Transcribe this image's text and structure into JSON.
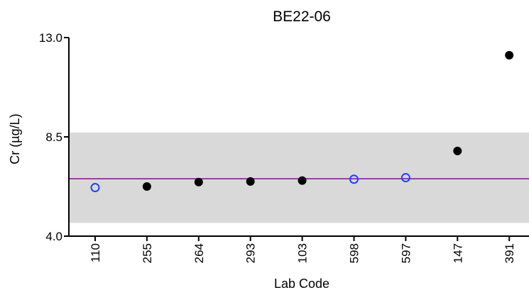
{
  "chart_data": {
    "type": "scatter",
    "title": "BE22-06",
    "xlabel": "Lab Code",
    "ylabel": "Cr (µg/L)",
    "ylim": [
      4.0,
      13.0
    ],
    "yticks": [
      "4.0",
      "8.5",
      "13.0"
    ],
    "categories": [
      "110",
      "255",
      "264",
      "293",
      "103",
      "598",
      "597",
      "147",
      "391"
    ],
    "values": [
      6.2,
      6.25,
      6.45,
      6.48,
      6.52,
      6.58,
      6.65,
      7.86,
      12.2
    ],
    "marker_style": [
      "open",
      "filled",
      "filled",
      "filled",
      "filled",
      "open",
      "open",
      "filled",
      "filled"
    ],
    "reference_value": 6.6,
    "acceptance_band": [
      4.6,
      8.7
    ],
    "grid": false,
    "legend": "none",
    "colors": {
      "filled_marker": "#000000",
      "open_marker": "#1f3fff",
      "reference_line": "#8b1a9a",
      "band": "#d9d9d9"
    }
  }
}
